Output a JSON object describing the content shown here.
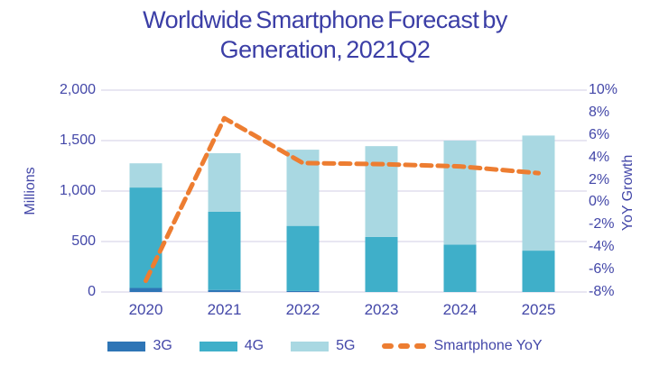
{
  "title": {
    "line1": "Worldwide Smartphone Forecast by",
    "line2": "Generation, 2021Q2"
  },
  "chart_data": {
    "type": "bar",
    "stacked": true,
    "title": "Worldwide Smartphone Forecast by Generation, 2021Q2",
    "categories": [
      "2020",
      "2021",
      "2022",
      "2023",
      "2024",
      "2025"
    ],
    "series": [
      {
        "name": "3G",
        "color": "#2e75b6",
        "values": [
          40,
          20,
          10,
          0,
          0,
          0
        ]
      },
      {
        "name": "4G",
        "color": "#3fafc9",
        "values": [
          995,
          775,
          645,
          545,
          470,
          410
        ]
      },
      {
        "name": "5G",
        "color": "#a9d8e2",
        "values": [
          240,
          580,
          755,
          900,
          1030,
          1140
        ]
      }
    ],
    "line_series": {
      "name": "Smartphone YoY",
      "color": "#ed7d31",
      "style": "dashed",
      "axis": "right",
      "values_percent": [
        -7.0,
        7.5,
        3.5,
        3.4,
        3.2,
        2.6
      ]
    },
    "left_axis": {
      "title": "Millions",
      "min": 0,
      "max": 2000,
      "ticks": [
        "2,000",
        "1,500",
        "1,000",
        "500",
        "0"
      ]
    },
    "right_axis": {
      "title": "YoY Growth",
      "min": -8,
      "max": 10,
      "ticks": [
        "10%",
        "8%",
        "6%",
        "4%",
        "2%",
        "0%",
        "-2%",
        "-4%",
        "-6%",
        "-8%"
      ]
    },
    "grid": "horizontal",
    "legend_position": "bottom"
  },
  "colors": {
    "title_text": "#3b3ea6",
    "axis_text": "#4347a8",
    "gridline": "#d9d8ea",
    "background": "#ffffff"
  }
}
